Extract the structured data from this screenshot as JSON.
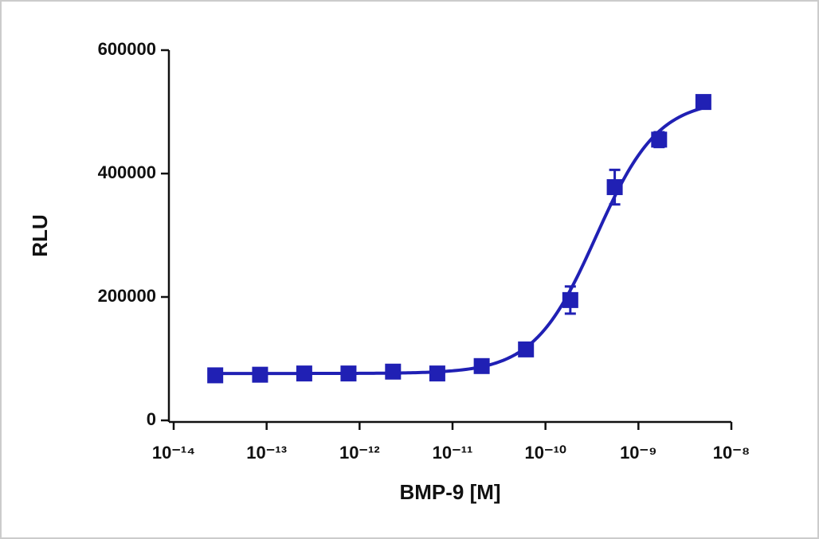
{
  "chart_data": {
    "type": "dose-response",
    "x_label": "BMP-9 [M]",
    "y_label": "RLU",
    "x": [
      2.8e-14,
      8.5e-14,
      2.54e-13,
      7.6e-13,
      2.29e-12,
      6.86e-12,
      2.06e-11,
      6.17e-11,
      1.85e-10,
      5.56e-10,
      1.67e-09,
      5e-09
    ],
    "values": [
      73000,
      74000,
      76000,
      76000,
      79000,
      76000,
      88000,
      115000,
      195000,
      378000,
      455000,
      516000
    ],
    "errors": [
      4000,
      4000,
      4000,
      4000,
      4000,
      4000,
      8000,
      6000,
      22000,
      28000,
      12000,
      10000
    ],
    "fit": {
      "bottom": 76000,
      "top": 520000,
      "ec50": 3.5e-10,
      "hill": 1.3
    },
    "color": "#2020b4",
    "xscale": "log",
    "xlim": [
      1e-14,
      1e-08
    ],
    "xticks": [
      {
        "value": 1e-14,
        "label": "10⁻¹⁴"
      },
      {
        "value": 1e-13,
        "label": "10⁻¹³"
      },
      {
        "value": 1e-12,
        "label": "10⁻¹²"
      },
      {
        "value": 1e-11,
        "label": "10⁻¹¹"
      },
      {
        "value": 1e-10,
        "label": "10⁻¹⁰"
      },
      {
        "value": 1e-09,
        "label": "10⁻⁹"
      },
      {
        "value": 1e-08,
        "label": "10⁻⁸"
      }
    ],
    "ylim": [
      0,
      600000
    ],
    "yticks": [
      0,
      200000,
      400000,
      600000
    ]
  }
}
